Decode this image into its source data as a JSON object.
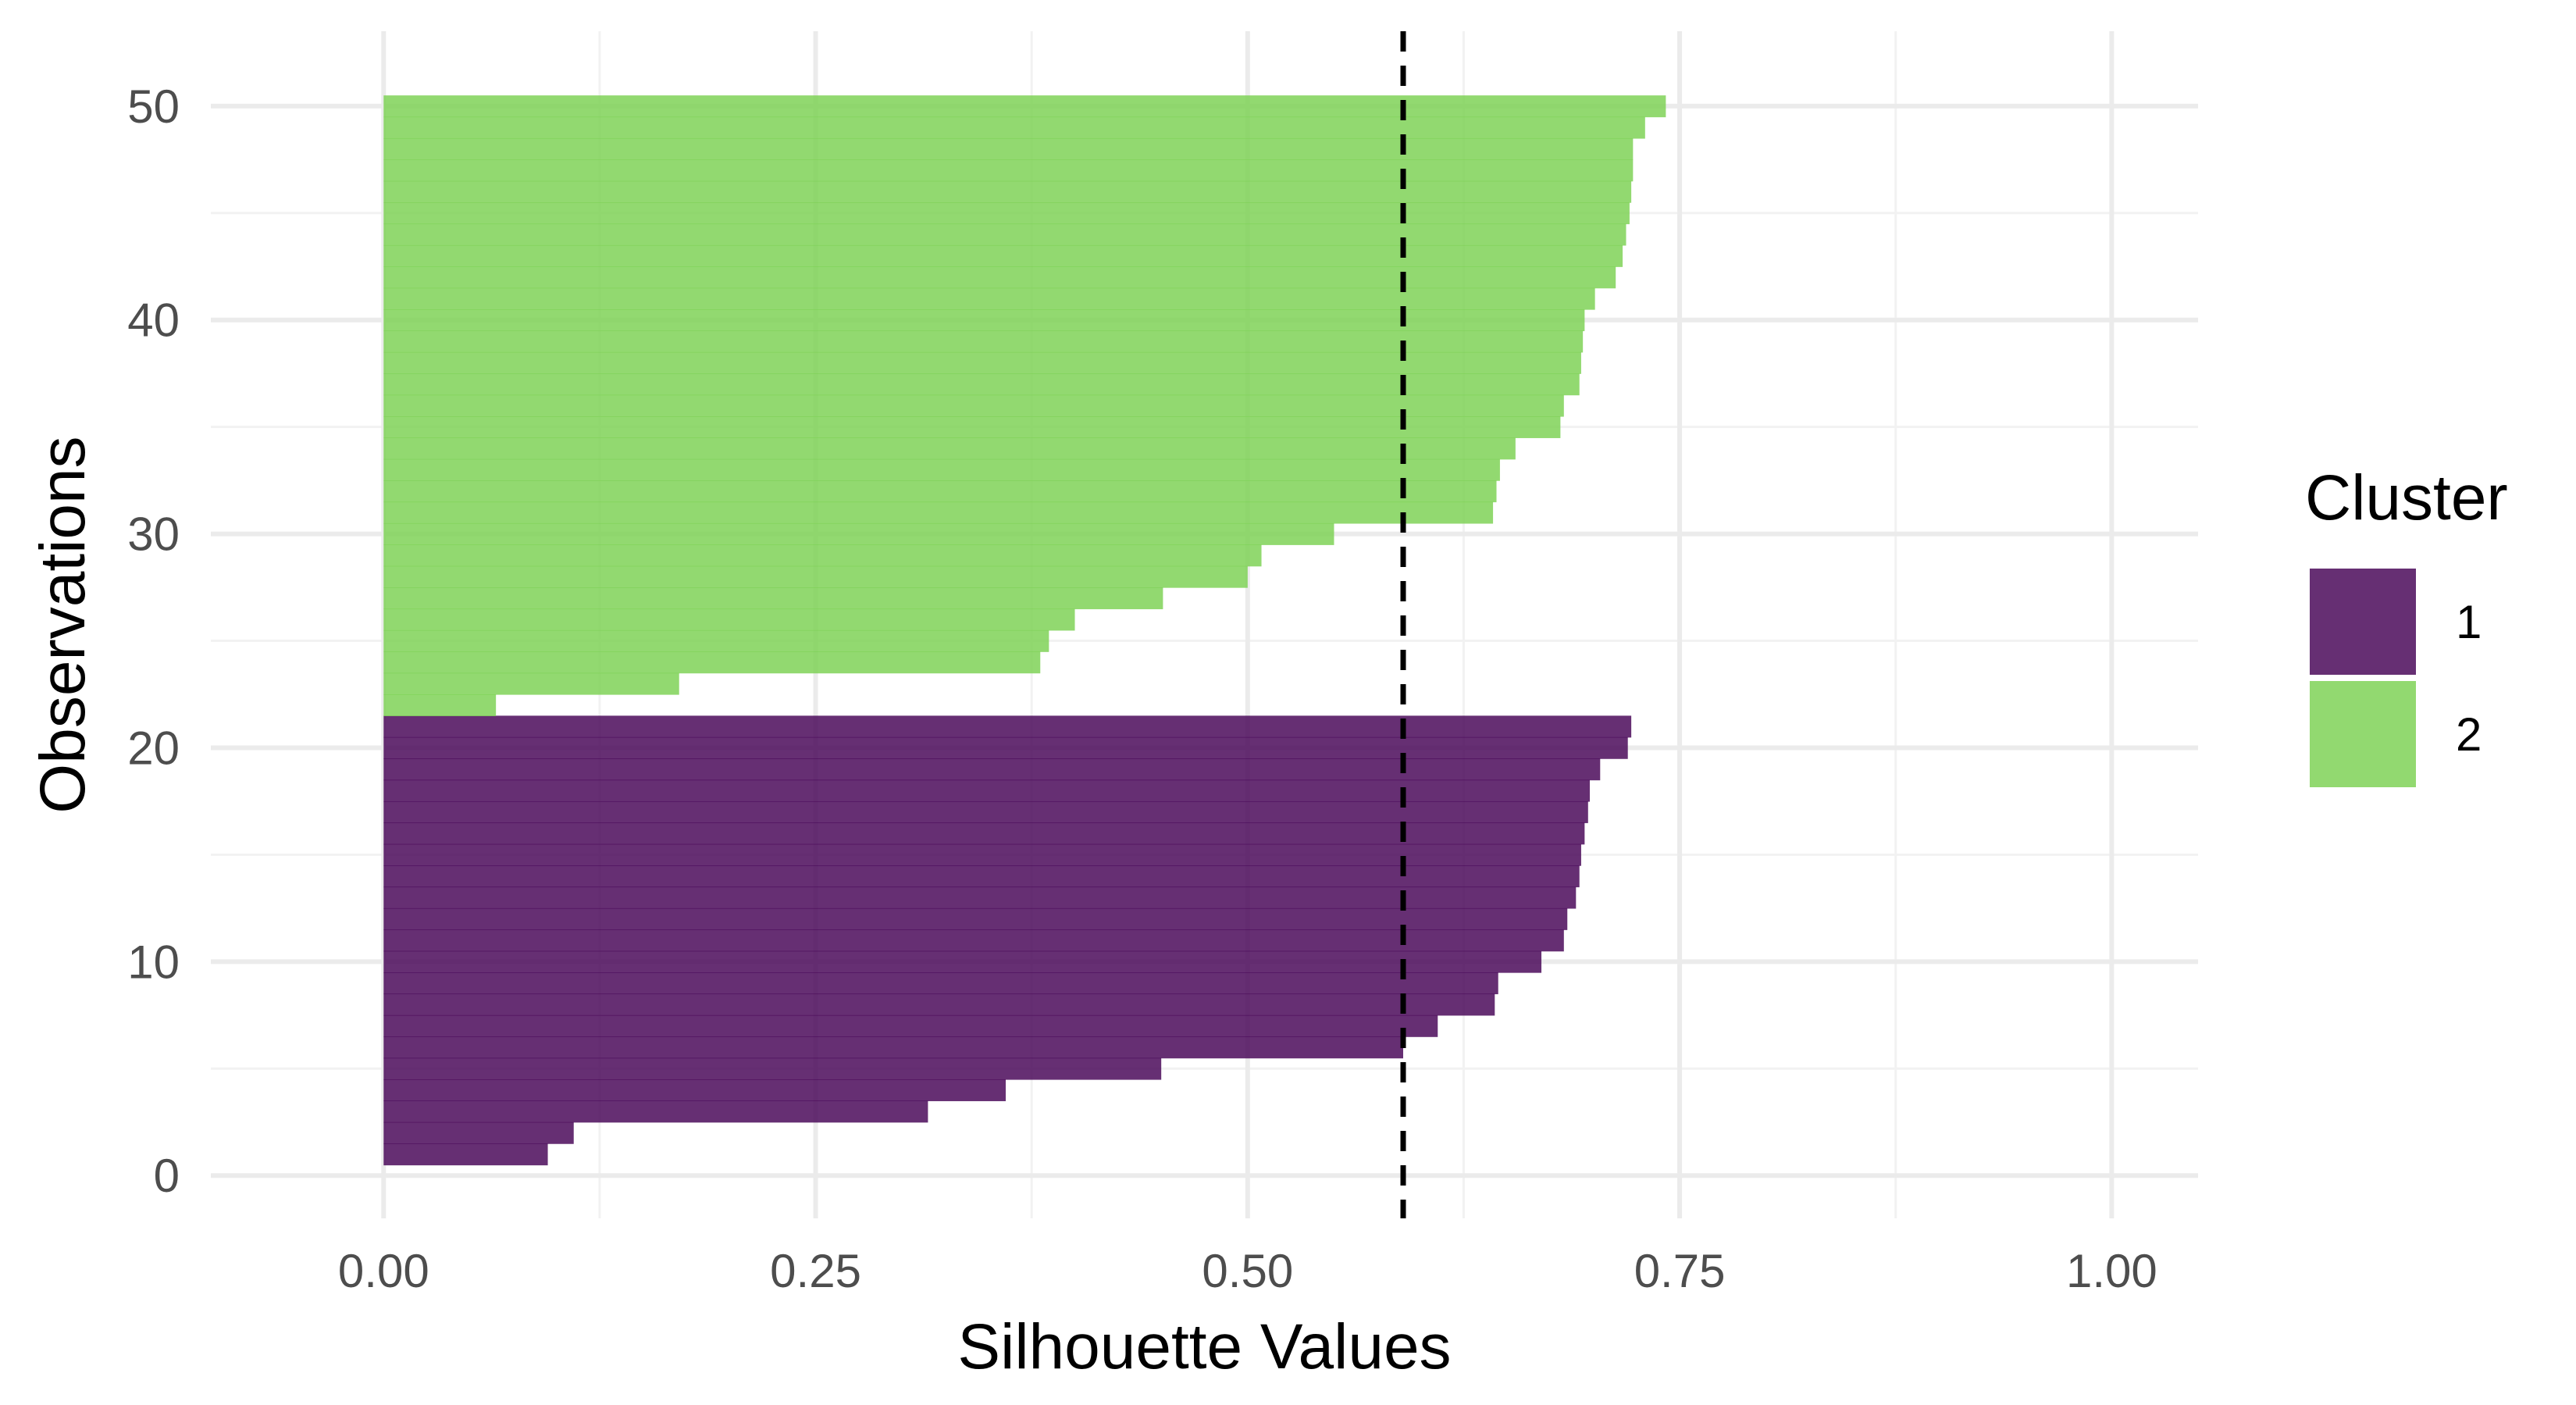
{
  "chart_data": {
    "type": "bar",
    "orientation": "horizontal",
    "xlabel": "Silhouette Values",
    "ylabel": "Observations",
    "xlim": [
      -0.1,
      1.05
    ],
    "ylim": [
      -2,
      53.5
    ],
    "x_ticks": [
      0.0,
      0.25,
      0.5,
      0.75,
      1.0
    ],
    "x_tick_labels": [
      "0.00",
      "0.25",
      "0.50",
      "0.75",
      "1.00"
    ],
    "y_ticks": [
      0,
      10,
      20,
      30,
      40,
      50
    ],
    "y_tick_labels": [
      "0",
      "10",
      "20",
      "30",
      "40",
      "50"
    ],
    "grid": true,
    "reference_line": {
      "x": 0.59,
      "style": "dashed",
      "color": "#000000"
    },
    "legend": {
      "title": "Cluster",
      "position": "right",
      "entries": [
        {
          "label": "1",
          "color": "#440154"
        },
        {
          "label": "2",
          "color": "#7AD151"
        }
      ]
    },
    "series": [
      {
        "name": "1",
        "color": "#440154",
        "observations": [
          1,
          2,
          3,
          4,
          5,
          6,
          7,
          8,
          9,
          10,
          11,
          12,
          13,
          14,
          15,
          16,
          17,
          18,
          19,
          20,
          21
        ],
        "values": [
          0.095,
          0.11,
          0.315,
          0.36,
          0.45,
          0.59,
          0.61,
          0.643,
          0.645,
          0.67,
          0.683,
          0.685,
          0.69,
          0.692,
          0.693,
          0.695,
          0.697,
          0.698,
          0.704,
          0.72,
          0.722
        ]
      },
      {
        "name": "2",
        "color": "#7AD151",
        "observations": [
          22,
          23,
          24,
          25,
          26,
          27,
          28,
          29,
          30,
          31,
          32,
          33,
          34,
          35,
          36,
          37,
          38,
          39,
          40,
          41,
          42,
          43,
          44,
          45,
          46,
          47,
          48,
          49,
          50
        ],
        "values": [
          0.065,
          0.171,
          0.38,
          0.385,
          0.4,
          0.451,
          0.5,
          0.508,
          0.55,
          0.642,
          0.644,
          0.646,
          0.655,
          0.681,
          0.683,
          0.692,
          0.693,
          0.694,
          0.695,
          0.701,
          0.713,
          0.717,
          0.719,
          0.721,
          0.722,
          0.723,
          0.723,
          0.73,
          0.742
        ]
      }
    ]
  }
}
